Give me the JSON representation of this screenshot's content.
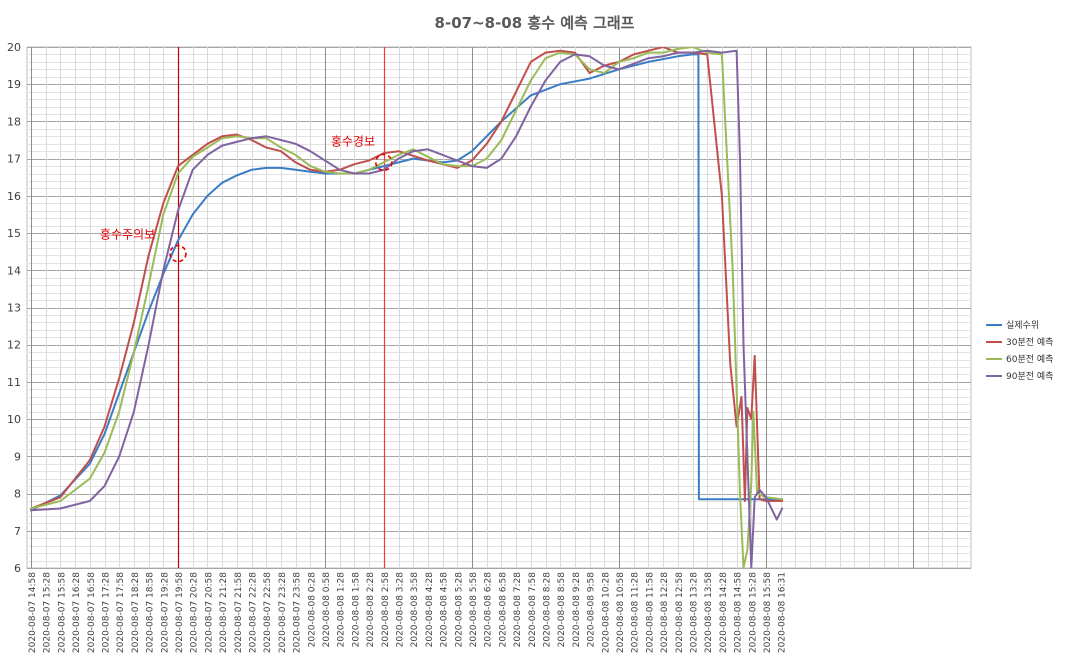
{
  "chart_data": {
    "type": "line",
    "title": "8-07~8-08 홍수 예측 그래프",
    "xlabel": "",
    "ylabel": "",
    "ylim": [
      6,
      20
    ],
    "yticks": [
      6,
      7,
      8,
      9,
      10,
      11,
      12,
      13,
      14,
      15,
      16,
      17,
      18,
      19,
      20
    ],
    "grid": true,
    "legend_position": "right",
    "x_tick_labels": [
      "2020-08-07 14:58",
      "2020-08-07 15:28",
      "2020-08-07 15:58",
      "2020-08-07 16:28",
      "2020-08-07 16:58",
      "2020-08-07 17:28",
      "2020-08-07 17:58",
      "2020-08-07 18:28",
      "2020-08-07 18:58",
      "2020-08-07 19:28",
      "2020-08-07 19:58",
      "2020-08-07 20:28",
      "2020-08-07 20:58",
      "2020-08-07 21:28",
      "2020-08-07 21:58",
      "2020-08-07 22:28",
      "2020-08-07 22:58",
      "2020-08-07 23:28",
      "2020-08-07 23:58",
      "2020-08-08 0:28",
      "2020-08-08 0:58",
      "2020-08-08 1:28",
      "2020-08-08 1:58",
      "2020-08-08 2:28",
      "2020-08-08 2:58",
      "2020-08-08 3:28",
      "2020-08-08 3:58",
      "2020-08-08 4:28",
      "2020-08-08 4:58",
      "2020-08-08 5:28",
      "2020-08-08 5:58",
      "2020-08-08 6:28",
      "2020-08-08 6:58",
      "2020-08-08 7:28",
      "2020-08-08 7:58",
      "2020-08-08 8:28",
      "2020-08-08 8:58",
      "2020-08-08 9:28",
      "2020-08-08 9:58",
      "2020-08-08 10:28",
      "2020-08-08 10:58",
      "2020-08-08 11:28",
      "2020-08-08 11:58",
      "2020-08-08 12:28",
      "2020-08-08 12:58",
      "2020-08-08 13:28",
      "2020-08-08 13:58",
      "2020-08-08 14:28",
      "2020-08-08 14:58",
      "2020-08-08 15:28",
      "2020-08-08 15:58",
      "2020-08-08 16:31"
    ],
    "series": [
      {
        "name": "실제수위",
        "color": "#3b7dc4",
        "x": [
          "2020-08-07 14:58",
          "2020-08-07 15:58",
          "2020-08-07 16:58",
          "2020-08-07 17:28",
          "2020-08-07 17:58",
          "2020-08-07 18:28",
          "2020-08-07 18:58",
          "2020-08-07 19:28",
          "2020-08-07 19:58",
          "2020-08-07 20:28",
          "2020-08-07 20:58",
          "2020-08-07 21:28",
          "2020-08-07 21:58",
          "2020-08-07 22:28",
          "2020-08-07 22:58",
          "2020-08-07 23:28",
          "2020-08-07 23:58",
          "2020-08-08 0:28",
          "2020-08-08 0:58",
          "2020-08-08 1:58",
          "2020-08-08 2:58",
          "2020-08-08 3:58",
          "2020-08-08 4:58",
          "2020-08-08 5:28",
          "2020-08-08 5:58",
          "2020-08-08 6:58",
          "2020-08-08 7:28",
          "2020-08-08 7:58",
          "2020-08-08 8:58",
          "2020-08-08 9:58",
          "2020-08-08 10:58",
          "2020-08-08 11:58",
          "2020-08-08 12:58",
          "2020-08-08 13:28",
          "2020-08-08 13:40",
          "2020-08-08 13:41",
          "2020-08-08 14:58",
          "2020-08-08 15:58",
          "2020-08-08 16:31"
        ],
        "y": [
          7.55,
          7.95,
          8.8,
          9.6,
          10.7,
          11.8,
          12.9,
          13.9,
          14.8,
          15.5,
          16.0,
          16.35,
          16.55,
          16.7,
          16.75,
          16.75,
          16.7,
          16.65,
          16.6,
          16.6,
          16.8,
          17.0,
          16.9,
          16.95,
          17.2,
          18.0,
          18.35,
          18.7,
          19.0,
          19.15,
          19.4,
          19.6,
          19.75,
          19.8,
          19.8,
          7.85,
          7.85,
          7.85,
          7.85
        ]
      },
      {
        "name": "30분전 예측",
        "color": "#c0504d",
        "x": [
          "2020-08-07 14:58",
          "2020-08-07 15:58",
          "2020-08-07 16:58",
          "2020-08-07 17:28",
          "2020-08-07 17:58",
          "2020-08-07 18:28",
          "2020-08-07 18:58",
          "2020-08-07 19:28",
          "2020-08-07 19:58",
          "2020-08-07 20:28",
          "2020-08-07 20:58",
          "2020-08-07 21:28",
          "2020-08-07 21:58",
          "2020-08-07 22:28",
          "2020-08-07 22:58",
          "2020-08-07 23:28",
          "2020-08-07 23:58",
          "2020-08-08 0:28",
          "2020-08-08 0:58",
          "2020-08-08 1:28",
          "2020-08-08 1:58",
          "2020-08-08 2:28",
          "2020-08-08 2:58",
          "2020-08-08 3:28",
          "2020-08-08 4:28",
          "2020-08-08 4:58",
          "2020-08-08 5:28",
          "2020-08-08 5:58",
          "2020-08-08 6:28",
          "2020-08-08 6:58",
          "2020-08-08 7:28",
          "2020-08-08 7:58",
          "2020-08-08 8:28",
          "2020-08-08 8:58",
          "2020-08-08 9:28",
          "2020-08-08 9:58",
          "2020-08-08 10:28",
          "2020-08-08 10:58",
          "2020-08-08 11:28",
          "2020-08-08 11:58",
          "2020-08-08 12:28",
          "2020-08-08 12:58",
          "2020-08-08 13:28",
          "2020-08-08 13:58",
          "2020-08-08 14:28",
          "2020-08-08 14:45",
          "2020-08-08 14:58",
          "2020-08-08 15:08",
          "2020-08-08 15:15",
          "2020-08-08 15:20",
          "2020-08-08 15:28",
          "2020-08-08 15:35",
          "2020-08-08 15:45",
          "2020-08-08 15:58",
          "2020-08-08 16:31"
        ],
        "y": [
          7.6,
          7.9,
          8.9,
          9.8,
          11.1,
          12.6,
          14.4,
          15.8,
          16.8,
          17.1,
          17.4,
          17.6,
          17.65,
          17.5,
          17.3,
          17.2,
          16.9,
          16.7,
          16.65,
          16.7,
          16.85,
          16.95,
          17.15,
          17.2,
          16.95,
          16.85,
          16.75,
          16.95,
          17.4,
          18.0,
          18.8,
          19.6,
          19.85,
          19.9,
          19.85,
          19.3,
          19.5,
          19.6,
          19.8,
          19.9,
          20.0,
          19.85,
          19.85,
          19.8,
          16.0,
          11.5,
          9.8,
          10.6,
          7.8,
          10.3,
          10.0,
          11.7,
          7.85,
          7.8,
          7.8
        ]
      },
      {
        "name": "60분전 예측",
        "color": "#9bbb59",
        "x": [
          "2020-08-07 14:58",
          "2020-08-07 15:58",
          "2020-08-07 16:58",
          "2020-08-07 17:28",
          "2020-08-07 17:58",
          "2020-08-07 18:28",
          "2020-08-07 18:58",
          "2020-08-07 19:28",
          "2020-08-07 19:58",
          "2020-08-07 20:28",
          "2020-08-07 20:58",
          "2020-08-07 21:28",
          "2020-08-07 21:58",
          "2020-08-07 22:28",
          "2020-08-07 22:58",
          "2020-08-07 23:28",
          "2020-08-07 23:58",
          "2020-08-08 0:28",
          "2020-08-08 0:58",
          "2020-08-08 1:28",
          "2020-08-08 1:58",
          "2020-08-08 2:28",
          "2020-08-08 2:58",
          "2020-08-08 3:28",
          "2020-08-08 3:58",
          "2020-08-08 4:28",
          "2020-08-08 4:58",
          "2020-08-08 5:28",
          "2020-08-08 5:58",
          "2020-08-08 6:28",
          "2020-08-08 6:58",
          "2020-08-08 7:28",
          "2020-08-08 7:58",
          "2020-08-08 8:28",
          "2020-08-08 8:58",
          "2020-08-08 9:28",
          "2020-08-08 9:58",
          "2020-08-08 10:28",
          "2020-08-08 10:58",
          "2020-08-08 11:28",
          "2020-08-08 11:58",
          "2020-08-08 12:28",
          "2020-08-08 12:58",
          "2020-08-08 13:28",
          "2020-08-08 13:58",
          "2020-08-08 14:28",
          "2020-08-08 14:50",
          "2020-08-08 15:05",
          "2020-08-08 15:12",
          "2020-08-08 15:20",
          "2020-08-08 15:28",
          "2020-08-08 15:32",
          "2020-08-08 15:40",
          "2020-08-08 15:58",
          "2020-08-08 16:31"
        ],
        "y": [
          7.6,
          7.8,
          8.4,
          9.1,
          10.2,
          11.8,
          13.6,
          15.5,
          16.6,
          17.05,
          17.3,
          17.55,
          17.6,
          17.55,
          17.55,
          17.3,
          17.1,
          16.8,
          16.65,
          16.6,
          16.6,
          16.7,
          16.9,
          17.1,
          17.25,
          17.05,
          16.85,
          16.8,
          16.8,
          17.0,
          17.5,
          18.3,
          19.1,
          19.7,
          19.85,
          19.8,
          19.4,
          19.3,
          19.6,
          19.7,
          19.85,
          19.85,
          19.95,
          20.0,
          19.85,
          19.8,
          14.0,
          8.0,
          6.0,
          6.5,
          8.3,
          10.2,
          8.0,
          7.9,
          7.85
        ]
      },
      {
        "name": "90분전 예측",
        "color": "#8064a2",
        "x": [
          "2020-08-07 14:58",
          "2020-08-07 15:58",
          "2020-08-07 16:58",
          "2020-08-07 17:28",
          "2020-08-07 17:58",
          "2020-08-07 18:28",
          "2020-08-07 18:58",
          "2020-08-07 19:28",
          "2020-08-07 19:58",
          "2020-08-07 20:28",
          "2020-08-07 20:58",
          "2020-08-07 21:28",
          "2020-08-07 21:58",
          "2020-08-07 22:28",
          "2020-08-07 22:58",
          "2020-08-07 23:28",
          "2020-08-07 23:58",
          "2020-08-08 0:28",
          "2020-08-08 0:58",
          "2020-08-08 1:28",
          "2020-08-08 1:58",
          "2020-08-08 2:28",
          "2020-08-08 2:58",
          "2020-08-08 3:28",
          "2020-08-08 3:58",
          "2020-08-08 4:28",
          "2020-08-08 4:58",
          "2020-08-08 5:28",
          "2020-08-08 5:58",
          "2020-08-08 6:28",
          "2020-08-08 6:58",
          "2020-08-08 7:28",
          "2020-08-08 7:58",
          "2020-08-08 8:28",
          "2020-08-08 8:58",
          "2020-08-08 9:28",
          "2020-08-08 9:58",
          "2020-08-08 10:28",
          "2020-08-08 10:58",
          "2020-08-08 11:28",
          "2020-08-08 11:58",
          "2020-08-08 12:28",
          "2020-08-08 12:58",
          "2020-08-08 13:28",
          "2020-08-08 13:58",
          "2020-08-08 14:28",
          "2020-08-08 14:58",
          "2020-08-08 15:05",
          "2020-08-08 15:12",
          "2020-08-08 15:28",
          "2020-08-08 15:35",
          "2020-08-08 15:45",
          "2020-08-08 15:58",
          "2020-08-08 16:20",
          "2020-08-08 16:31"
        ],
        "y": [
          7.55,
          7.6,
          7.8,
          8.2,
          9.0,
          10.2,
          12.0,
          14.0,
          15.6,
          16.7,
          17.1,
          17.35,
          17.45,
          17.55,
          17.6,
          17.5,
          17.4,
          17.2,
          16.95,
          16.7,
          16.6,
          16.6,
          16.7,
          17.0,
          17.2,
          17.25,
          17.1,
          16.95,
          16.8,
          16.75,
          17.0,
          17.6,
          18.4,
          19.1,
          19.6,
          19.8,
          19.75,
          19.5,
          19.4,
          19.55,
          19.7,
          19.75,
          19.85,
          19.85,
          19.9,
          19.85,
          19.9,
          17.0,
          12.0,
          6.0,
          7.9,
          8.1,
          7.9,
          7.3,
          7.6
        ]
      }
    ],
    "vertical_lines": [
      {
        "x": "2020-08-07 19:58",
        "color": "#c00000"
      },
      {
        "x": "2020-08-08 2:58",
        "color": "#ff3333"
      }
    ],
    "annotations": [
      {
        "text": "홍수주의보",
        "x": "2020-08-07 18:15",
        "y": 14.85,
        "color": "#e00000"
      },
      {
        "text": "홍수경보",
        "x": "2020-08-08 1:55",
        "y": 17.35,
        "color": "#e00000"
      }
    ],
    "markers": [
      {
        "x": "2020-08-07 19:58",
        "y": 14.45,
        "color": "#e00000"
      },
      {
        "x": "2020-08-08 2:58",
        "y": 16.9,
        "color": "#e00000"
      }
    ]
  }
}
